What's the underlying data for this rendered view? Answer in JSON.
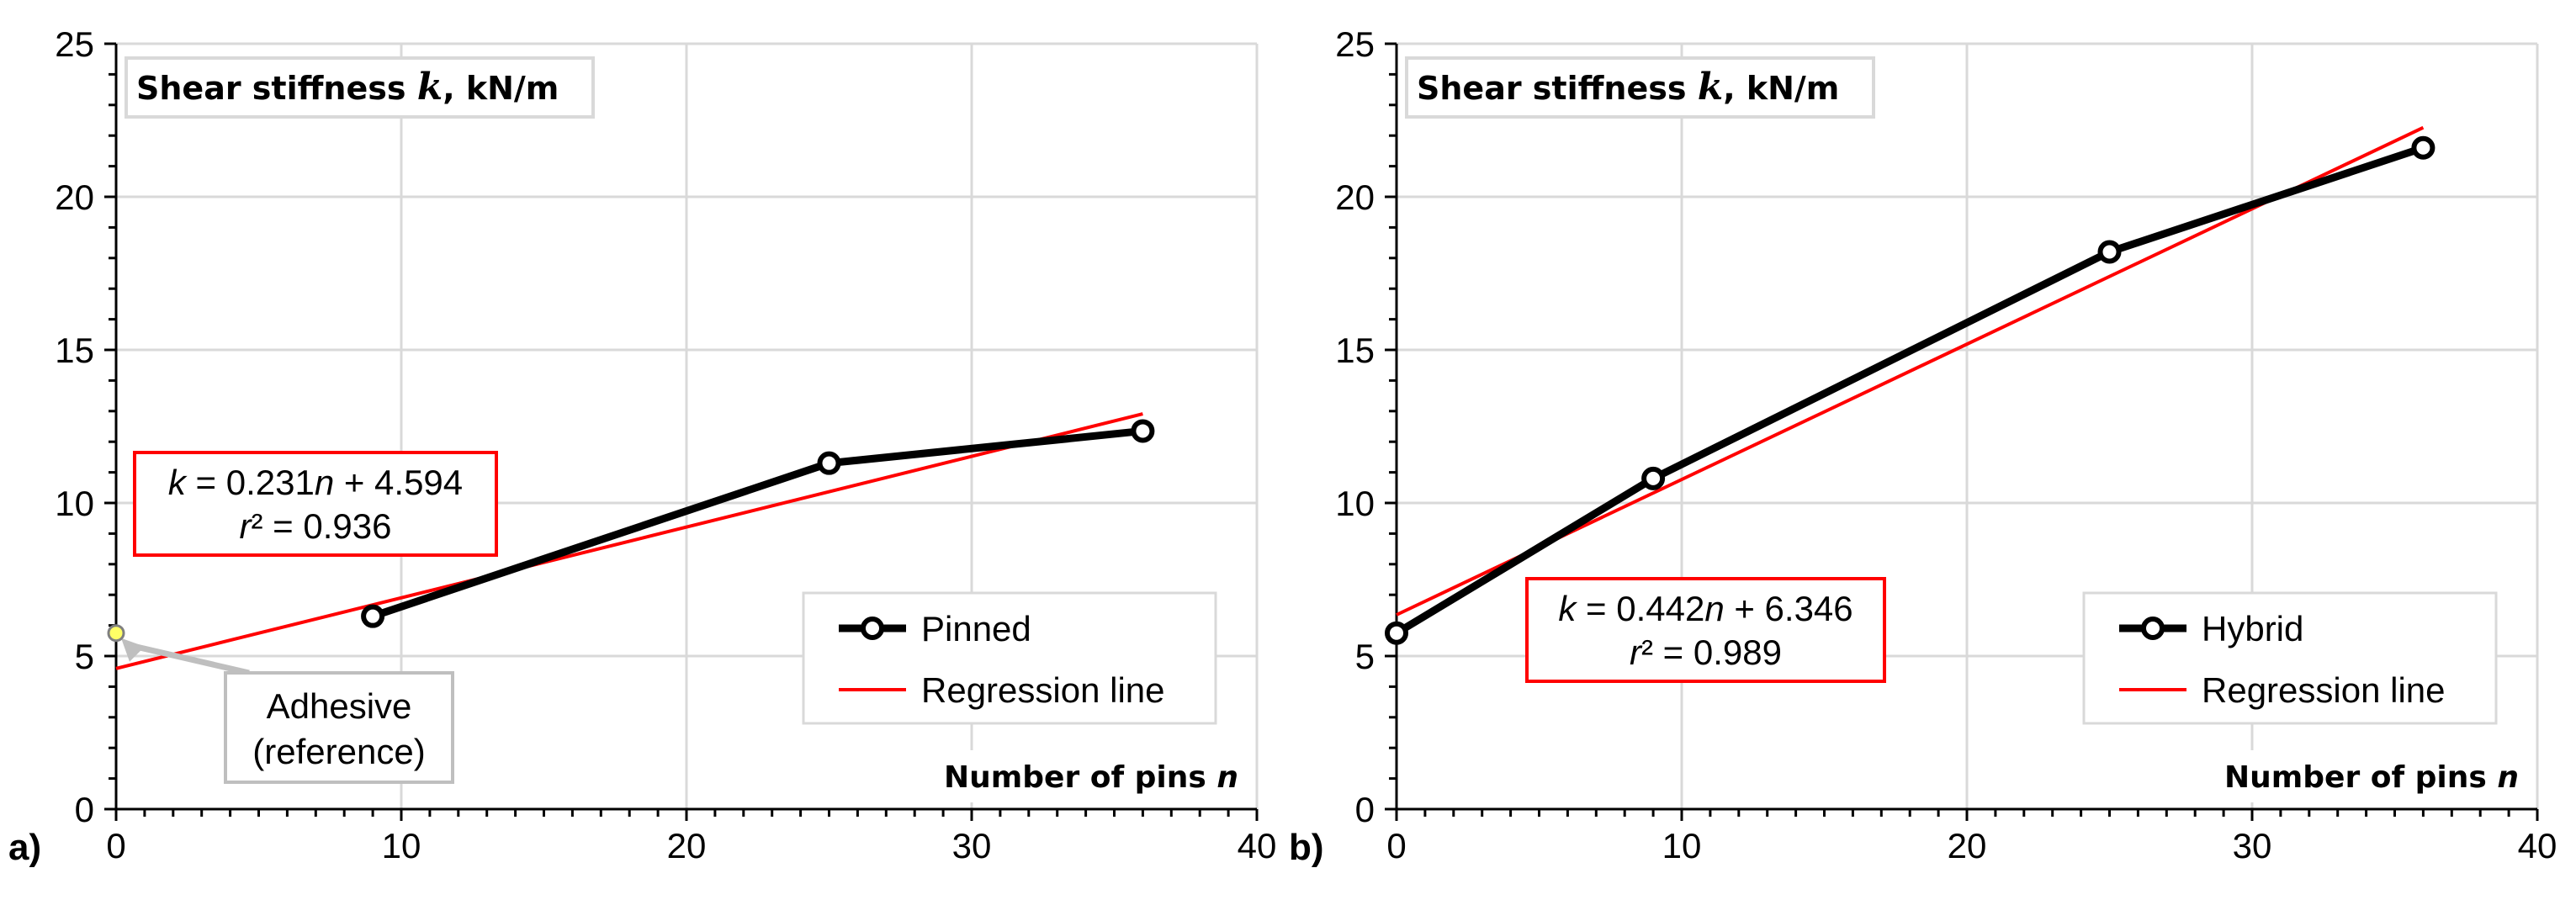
{
  "colors": {
    "series": "#000000",
    "regression": "#ff0000",
    "grid": "#d9d9d9",
    "box_border": "#ff0000",
    "label_border": "#d9d9d9",
    "reference_marker": "#ffff66",
    "reference_arrow": "#bfbfbf"
  },
  "chart_data": [
    {
      "type": "line",
      "panel_label": "a)",
      "ylabel_parts": [
        "Shear stiffness ",
        "k",
        ", kN/m"
      ],
      "xlabel_parts": [
        "Number of pins ",
        "n"
      ],
      "xlim": [
        0,
        40
      ],
      "ylim": [
        0,
        25
      ],
      "x_ticks": [
        0,
        10,
        20,
        30,
        40
      ],
      "y_ticks": [
        0,
        5,
        10,
        15,
        20,
        25
      ],
      "grid": true,
      "legend_position": "bottom-right",
      "series": [
        {
          "name": "Pinned",
          "type": "line",
          "marker": "circle",
          "x": [
            9,
            25,
            36
          ],
          "y": [
            6.3,
            11.3,
            12.35
          ]
        },
        {
          "name": "Regression line",
          "type": "line",
          "marker": "none",
          "x": [
            0,
            36
          ],
          "y": [
            4.594,
            12.91
          ]
        }
      ],
      "equation_box": {
        "line1_parts": [
          "k",
          " = 0.231",
          "n",
          " + 4.594"
        ],
        "line2_parts": [
          "r",
          "² = 0.936"
        ]
      },
      "reference": {
        "x": 0,
        "y": 5.75,
        "label_line1": "Adhesive",
        "label_line2": "(reference)"
      }
    },
    {
      "type": "line",
      "panel_label": "b)",
      "ylabel_parts": [
        "Shear stiffness ",
        "k",
        ", kN/m"
      ],
      "xlabel_parts": [
        "Number of pins ",
        "n"
      ],
      "xlim": [
        0,
        40
      ],
      "ylim": [
        0,
        25
      ],
      "x_ticks": [
        0,
        10,
        20,
        30,
        40
      ],
      "y_ticks": [
        0,
        5,
        10,
        15,
        20,
        25
      ],
      "grid": true,
      "legend_position": "bottom-right",
      "series": [
        {
          "name": "Hybrid",
          "type": "line",
          "marker": "circle",
          "x": [
            0,
            9,
            25,
            36
          ],
          "y": [
            5.75,
            10.8,
            18.2,
            21.6
          ]
        },
        {
          "name": "Regression line",
          "type": "line",
          "marker": "none",
          "x": [
            0,
            36
          ],
          "y": [
            6.346,
            22.26
          ]
        }
      ],
      "equation_box": {
        "line1_parts": [
          "k",
          " = 0.442",
          "n",
          " + 6.346"
        ],
        "line2_parts": [
          "r",
          "² = 0.989"
        ]
      }
    }
  ]
}
